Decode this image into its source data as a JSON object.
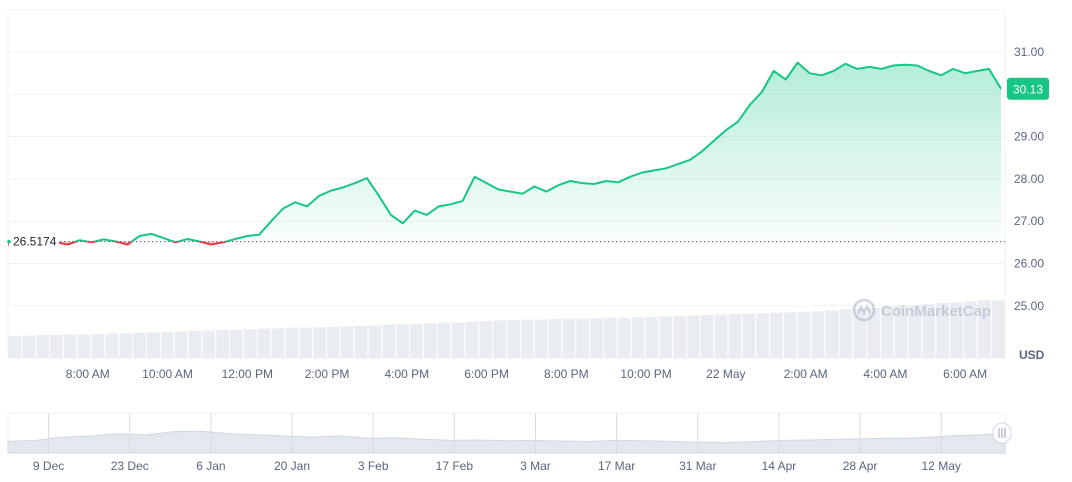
{
  "chart_data": {
    "type": "area",
    "title": "",
    "xlabel": "",
    "ylabel": "USD",
    "ylim": [
      24.9,
      31.2
    ],
    "y_ticks": [
      25.0,
      26.0,
      27.0,
      28.0,
      29.0,
      30.0,
      31.0
    ],
    "y_tick_labels": [
      "25.00",
      "26.00",
      "27.00",
      "28.00",
      "29.00",
      "",
      "31.00"
    ],
    "x_tick_labels": [
      "8:00 AM",
      "10:00 AM",
      "12:00 PM",
      "2:00 PM",
      "4:00 PM",
      "6:00 PM",
      "8:00 PM",
      "10:00 PM",
      "22 May",
      "2:00 AM",
      "4:00 AM",
      "6:00 AM"
    ],
    "x_tick_hours": [
      2,
      4,
      6,
      8,
      10,
      12,
      14,
      16,
      18,
      20,
      22,
      24
    ],
    "baseline": {
      "value": 26.5174,
      "label": "26.5174"
    },
    "current_price": {
      "value": 30.13,
      "label": "30.13"
    },
    "grid": true,
    "colors": {
      "up": "#16c784",
      "down": "#ea3943",
      "current_badge": "#16c784",
      "text": "#58667e",
      "grid": "#eff2f5"
    },
    "series": [
      {
        "x_hours": [
          0,
          0.3,
          0.6,
          0.9,
          1.2,
          1.5,
          1.8,
          2.1,
          2.4,
          2.7,
          3.0,
          3.3,
          3.6,
          3.9,
          4.2,
          4.5,
          4.8,
          5.1,
          5.4,
          5.7,
          6.0,
          6.3,
          6.6,
          6.9,
          7.2,
          7.5,
          7.8,
          8.1,
          8.4,
          8.7,
          9.0,
          9.3,
          9.6,
          9.9,
          10.2,
          10.5,
          10.8,
          11.1,
          11.4,
          11.7,
          12.0,
          12.3,
          12.6,
          12.9,
          13.2,
          13.5,
          13.8,
          14.1,
          14.4,
          14.7,
          15.0,
          15.3,
          15.6,
          15.9,
          16.2,
          16.5,
          16.8,
          17.1,
          17.4,
          17.7,
          18.0,
          18.3,
          18.6,
          18.9,
          19.2,
          19.5,
          19.8,
          20.1,
          20.4,
          20.7,
          21.0,
          21.3,
          21.6,
          21.9,
          22.2,
          22.5,
          22.8,
          23.1,
          23.4,
          23.7,
          24.0,
          24.3,
          24.6,
          24.9
        ],
        "values": [
          26.45,
          26.43,
          26.5,
          26.52,
          26.5,
          26.45,
          26.55,
          26.5,
          26.57,
          26.52,
          26.45,
          26.65,
          26.7,
          26.6,
          26.5,
          26.58,
          26.52,
          26.45,
          26.5,
          26.58,
          26.65,
          26.68,
          27.0,
          27.3,
          27.45,
          27.35,
          27.6,
          27.72,
          27.8,
          27.9,
          28.02,
          27.6,
          27.15,
          26.95,
          27.25,
          27.15,
          27.35,
          27.4,
          27.48,
          28.05,
          27.9,
          27.75,
          27.7,
          27.65,
          27.82,
          27.7,
          27.85,
          27.95,
          27.9,
          27.88,
          27.95,
          27.92,
          28.05,
          28.15,
          28.2,
          28.25,
          28.35,
          28.45,
          28.65,
          28.9,
          29.15,
          29.35,
          29.75,
          30.05,
          30.55,
          30.35,
          30.75,
          30.5,
          30.45,
          30.55,
          30.72,
          30.6,
          30.65,
          30.6,
          30.68,
          30.7,
          30.68,
          30.55,
          30.45,
          30.6,
          30.5,
          30.55,
          30.6,
          30.13
        ]
      }
    ],
    "volume": {
      "values": [
        0.22,
        0.23,
        0.24,
        0.24,
        0.25,
        0.25,
        0.26,
        0.27,
        0.28,
        0.29,
        0.3,
        0.31,
        0.32,
        0.33,
        0.34,
        0.35,
        0.36,
        0.37,
        0.38,
        0.39,
        0.4,
        0.4,
        0.41,
        0.42,
        0.43,
        0.44,
        0.45,
        0.47,
        0.48,
        0.49,
        0.5,
        0.51,
        0.52,
        0.53,
        0.55,
        0.56,
        0.57,
        0.58,
        0.58,
        0.59,
        0.6,
        0.6,
        0.61,
        0.62,
        0.62,
        0.63,
        0.64,
        0.65,
        0.66,
        0.67,
        0.68,
        0.69,
        0.7,
        0.71,
        0.72,
        0.73,
        0.74,
        0.75,
        0.76,
        0.78,
        0.8,
        0.82,
        0.84,
        0.86,
        0.88,
        0.9,
        0.92,
        0.94,
        0.96,
        0.98,
        1.0,
        1.0
      ]
    },
    "navigator": {
      "x_tick_labels": [
        "9 Dec",
        "23 Dec",
        "6 Jan",
        "20 Jan",
        "3 Feb",
        "17 Feb",
        "3 Mar",
        "17 Mar",
        "31 Mar",
        "14 Apr",
        "28 Apr",
        "12 May"
      ],
      "x_tick_days": [
        7,
        21,
        35,
        49,
        63,
        77,
        91,
        105,
        119,
        133,
        147,
        161
      ],
      "values": [
        0.25,
        0.3,
        0.45,
        0.5,
        0.6,
        0.55,
        0.7,
        0.72,
        0.6,
        0.55,
        0.5,
        0.45,
        0.5,
        0.4,
        0.42,
        0.35,
        0.3,
        0.32,
        0.28,
        0.3,
        0.27,
        0.25,
        0.3,
        0.28,
        0.25,
        0.22,
        0.2,
        0.25,
        0.3,
        0.32,
        0.35,
        0.38,
        0.4,
        0.42,
        0.5,
        0.55,
        0.6
      ]
    }
  },
  "watermark": "CoinMarketCap"
}
